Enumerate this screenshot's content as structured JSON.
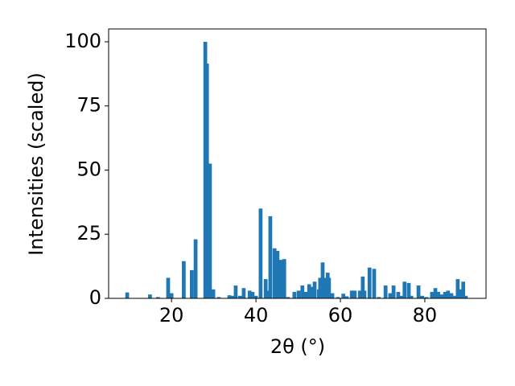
{
  "chart_data": {
    "type": "bar",
    "xlabel": "2θ (°)",
    "ylabel": "Intensities (scaled)",
    "color": "#1f77b4",
    "x": [
      9.5,
      14.9,
      16.8,
      19.2,
      20,
      22.9,
      24.8,
      25.7,
      28,
      28.4,
      29.1,
      29.9,
      31.2,
      33.7,
      34.5,
      35.2,
      36.2,
      37.1,
      38.5,
      39.2,
      40,
      41.1,
      42.3,
      42.9,
      43.4,
      44.4,
      45.1,
      45.9,
      46.7,
      47.6,
      49.1,
      50.1,
      51,
      51.8,
      52.6,
      53.3,
      53.9,
      54.9,
      55.2,
      55.8,
      56.4,
      57,
      57.3,
      58.1,
      59.4,
      60.7,
      61.5,
      62.7,
      63.4,
      64.6,
      65.3,
      65.7,
      66.9,
      68,
      69.1,
      70.7,
      71.8,
      72.6,
      73.7,
      74.5,
      75.2,
      76.2,
      76.8,
      78.5,
      79.4,
      80.4,
      81.7,
      82.5,
      83.2,
      84,
      84.8,
      85.5,
      86.3,
      87.2,
      87.8,
      88.4,
      89.1,
      89.7
    ],
    "values": [
      2.3,
      1.5,
      0.5,
      8,
      2,
      14.5,
      11,
      23,
      100,
      91.5,
      52.5,
      3.5,
      0.5,
      1.2,
      1,
      5,
      1,
      4,
      3,
      2.5,
      1,
      35,
      7.5,
      3,
      32,
      19.5,
      18.5,
      15,
      15.3,
      0.5,
      2.5,
      3,
      5,
      2.5,
      5.5,
      4.5,
      6.5,
      3.5,
      8,
      14,
      8,
      10,
      8,
      2,
      0.5,
      1.8,
      0.8,
      3,
      3,
      3,
      8.5,
      3,
      12,
      11.5,
      0.5,
      5,
      2,
      5,
      2.5,
      1,
      6.5,
      6,
      1,
      5,
      1,
      0.5,
      2.5,
      4,
      2.5,
      1.5,
      2.5,
      3,
      2,
      1,
      7.5,
      3.5,
      6.5,
      1
    ],
    "xlim": [
      5.1,
      94.5
    ],
    "ylim": [
      0,
      105
    ],
    "xticks": [
      20,
      40,
      60,
      80
    ],
    "yticks": [
      0,
      25,
      50,
      75,
      100
    ],
    "grid": false
  }
}
